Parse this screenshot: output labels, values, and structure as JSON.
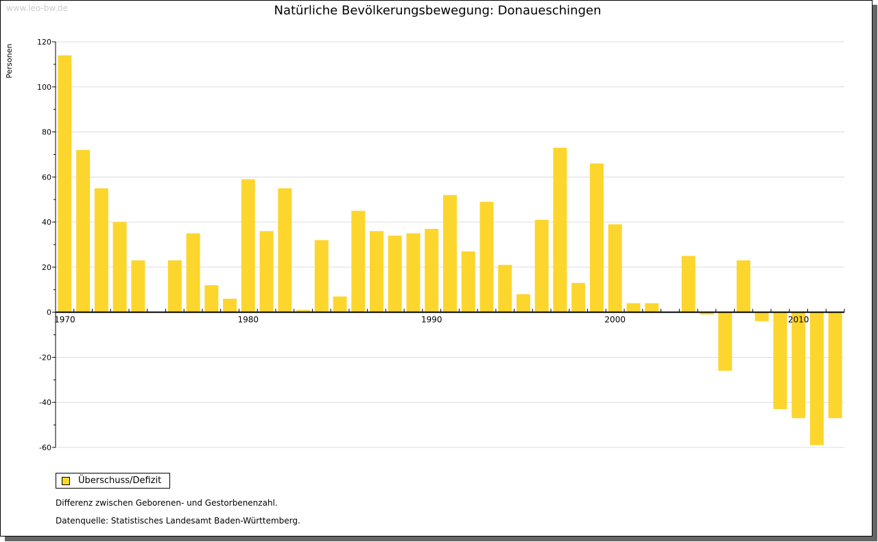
{
  "watermark": "www.leo-bw.de",
  "chart_data": {
    "type": "bar",
    "title": "Natürliche Bevölkerungsbewegung: Donaueschingen",
    "xlabel": "",
    "ylabel": "Personen",
    "ylim": [
      -60,
      120
    ],
    "yticks": [
      -60,
      -40,
      -20,
      0,
      20,
      40,
      60,
      80,
      100,
      120
    ],
    "xtick_labels": [
      "1970",
      "1980",
      "1990",
      "2000",
      "2010"
    ],
    "grid": true,
    "legend_position": "bottom-left",
    "color": "#fcd62d",
    "series": [
      {
        "name": "Überschuss/Defizit",
        "x": [
          1970,
          1971,
          1972,
          1973,
          1974,
          1975,
          1976,
          1977,
          1978,
          1979,
          1980,
          1981,
          1982,
          1983,
          1984,
          1985,
          1986,
          1987,
          1988,
          1989,
          1990,
          1991,
          1992,
          1993,
          1994,
          1995,
          1996,
          1997,
          1998,
          1999,
          2000,
          2001,
          2002,
          2003,
          2004,
          2005,
          2006,
          2007,
          2008,
          2009,
          2010,
          2011,
          2012
        ],
        "values": [
          114,
          72,
          55,
          40,
          23,
          0,
          23,
          35,
          12,
          6,
          59,
          36,
          55,
          1,
          32,
          7,
          45,
          36,
          34,
          35,
          37,
          52,
          27,
          49,
          21,
          8,
          41,
          73,
          13,
          66,
          39,
          4,
          4,
          0,
          25,
          -1,
          -26,
          23,
          -4,
          -43,
          -47,
          -59,
          -47
        ]
      }
    ]
  },
  "notes": [
    "Differenz zwischen Geborenen- und Gestorbenenzahl.",
    "Datenquelle: Statistisches Landesamt Baden-Württemberg."
  ]
}
